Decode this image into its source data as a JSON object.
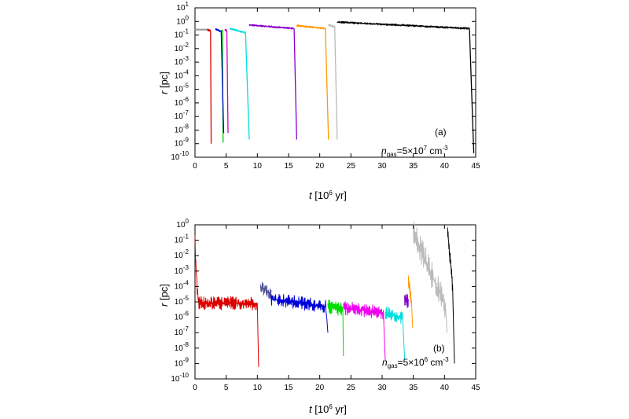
{
  "chart_data": [
    {
      "type": "line",
      "panel_label": "(a)",
      "annotation": {
        "main": "n",
        "sub": "gas",
        "eq": "=5×10",
        "exp": "7",
        "unit": " cm",
        "unit_exp": "-3"
      },
      "xlabel": {
        "italic": "t",
        "rest": " [10",
        "exp": "6",
        "tail": " yr]"
      },
      "ylabel": {
        "italic": "r",
        "rest": " [pc]"
      },
      "xlim": [
        0,
        45
      ],
      "ylim_log10": [
        -10,
        1
      ],
      "y_scale": "log",
      "x_ticks": [
        "0",
        "5",
        "10",
        "15",
        "20",
        "25",
        "30",
        "35",
        "40",
        "45"
      ],
      "y_ticks": [
        {
          "base": "10",
          "exp": "1"
        },
        {
          "base": "10",
          "exp": "0"
        },
        {
          "base": "10",
          "exp": "-1"
        },
        {
          "base": "10",
          "exp": "-2"
        },
        {
          "base": "10",
          "exp": "-3"
        },
        {
          "base": "10",
          "exp": "-4"
        },
        {
          "base": "10",
          "exp": "-5"
        },
        {
          "base": "10",
          "exp": "-6"
        },
        {
          "base": "10",
          "exp": "-7"
        },
        {
          "base": "10",
          "exp": "-8"
        },
        {
          "base": "10",
          "exp": "-9"
        },
        {
          "base": "10",
          "exp": "-10"
        }
      ],
      "series": [
        {
          "color": "#999999",
          "start": 0.0,
          "end": 2.0,
          "r0": 0.25,
          "rend": 0.25,
          "merge": false,
          "osc": 0.03
        },
        {
          "color": "#dd0000",
          "start": 2.0,
          "end": 2.5,
          "r0": 0.25,
          "rend": 0.2,
          "merge": true,
          "tmin": 2.6,
          "rmin": 1e-09
        },
        {
          "color": "#00cc00",
          "start": 4.3,
          "end": 4.4,
          "r0": 0.2,
          "rend": 0.2,
          "merge": true,
          "tmin": 4.5,
          "rmin": 1.2e-09
        },
        {
          "color": "#0000dd",
          "start": 3.3,
          "end": 4.2,
          "r0": 0.27,
          "rend": 0.18,
          "merge": true,
          "tmin": 4.6,
          "rmin": 6e-09
        },
        {
          "color": "#cc00cc",
          "start": 4.8,
          "end": 5.1,
          "r0": 0.25,
          "rend": 0.2,
          "merge": true,
          "tmin": 5.3,
          "rmin": 6e-09
        },
        {
          "color": "#00dddd",
          "start": 5.6,
          "end": 8.1,
          "r0": 0.3,
          "rend": 0.15,
          "merge": true,
          "tmin": 8.7,
          "rmin": 2e-09
        },
        {
          "color": "#8800cc",
          "start": 8.7,
          "end": 15.9,
          "r0": 0.55,
          "rend": 0.3,
          "merge": true,
          "tmin": 16.3,
          "rmin": 2e-09
        },
        {
          "color": "#ff9900",
          "start": 16.3,
          "end": 20.9,
          "r0": 0.5,
          "rend": 0.3,
          "merge": true,
          "tmin": 21.4,
          "rmin": 2e-09
        },
        {
          "color": "#bbbbbb",
          "start": 21.4,
          "end": 22.4,
          "r0": 0.55,
          "rend": 0.4,
          "merge": true,
          "tmin": 22.8,
          "rmin": 2e-09
        },
        {
          "color": "#000000",
          "start": 22.8,
          "end": 44.0,
          "r0": 0.9,
          "rend": 0.3,
          "merge": true,
          "tmin": 44.7,
          "rmin": 2e-10
        }
      ]
    },
    {
      "type": "line",
      "panel_label": "(b)",
      "annotation": {
        "main": "n",
        "sub": "gas",
        "eq": "=5×10",
        "exp": "6",
        "unit": " cm",
        "unit_exp": "-3"
      },
      "xlabel": {
        "italic": "t",
        "rest": " [10",
        "exp": "6",
        "tail": " yr]"
      },
      "ylabel": {
        "italic": "r",
        "rest": " [pc]"
      },
      "xlim": [
        0,
        45
      ],
      "ylim_log10": [
        -10,
        0
      ],
      "y_scale": "log",
      "x_ticks": [
        "0",
        "5",
        "10",
        "15",
        "20",
        "25",
        "30",
        "35",
        "40",
        "45"
      ],
      "y_ticks": [
        {
          "base": "10",
          "exp": "0"
        },
        {
          "base": "10",
          "exp": "-1"
        },
        {
          "base": "10",
          "exp": "-2"
        },
        {
          "base": "10",
          "exp": "-3"
        },
        {
          "base": "10",
          "exp": "-4"
        },
        {
          "base": "10",
          "exp": "-5"
        },
        {
          "base": "10",
          "exp": "-6"
        },
        {
          "base": "10",
          "exp": "-7"
        },
        {
          "base": "10",
          "exp": "-8"
        },
        {
          "base": "10",
          "exp": "-9"
        },
        {
          "base": "10",
          "exp": "-10"
        }
      ],
      "series": [
        {
          "color": "#dd0000",
          "start": 0.0,
          "end": 10.0,
          "r0": 0.1,
          "rend": 8e-06,
          "merge": true,
          "tmin": 10.2,
          "rmin": 6e-10,
          "noisy": true
        },
        {
          "color": "#555599",
          "start": 10.5,
          "end": 12.2,
          "r0": 0.0001,
          "rend": 3e-05,
          "merge": false,
          "noisy": true
        },
        {
          "color": "#0000dd",
          "start": 12.2,
          "end": 21.0,
          "r0": 1.5e-05,
          "rend": 5e-06,
          "merge": true,
          "tmin": 21.3,
          "rmin": 1e-07,
          "noisy": true
        },
        {
          "color": "#00dd00",
          "start": 21.3,
          "end": 23.7,
          "r0": 5e-06,
          "rend": 3e-06,
          "merge": true,
          "tmin": 23.8,
          "rmin": 3e-09,
          "noisy": true
        },
        {
          "color": "#ee00ee",
          "start": 23.8,
          "end": 30.2,
          "r0": 4e-06,
          "rend": 2e-06,
          "merge": true,
          "tmin": 30.5,
          "rmin": 1.5e-09,
          "noisy": true
        },
        {
          "color": "#00dddd",
          "start": 30.5,
          "end": 33.3,
          "r0": 2e-06,
          "rend": 1e-06,
          "merge": true,
          "tmin": 33.6,
          "rmin": 2e-09,
          "noisy": true
        },
        {
          "color": "#8800cc",
          "start": 33.6,
          "end": 34.2,
          "r0": 1.5e-05,
          "rend": 1e-05,
          "merge": false,
          "noisy": true
        },
        {
          "color": "#ff9900",
          "start": 34.2,
          "end": 34.7,
          "r0": 0.0003,
          "rend": 1e-05,
          "merge": true,
          "tmin": 34.9,
          "rmin": 2e-07,
          "noisy": true
        },
        {
          "color": "#bbbbbb",
          "start": 35.0,
          "end": 40.2,
          "r0": 0.3,
          "rend": 5e-06,
          "merge": true,
          "tmin": 40.4,
          "rmin": 1e-07,
          "noisy": true,
          "wide": true
        },
        {
          "color": "#000000",
          "start": 40.5,
          "end": 41.3,
          "r0": 0.4,
          "rend": 0.0001,
          "merge": true,
          "tmin": 41.6,
          "rmin": 1e-09,
          "noisy": true
        }
      ]
    }
  ]
}
